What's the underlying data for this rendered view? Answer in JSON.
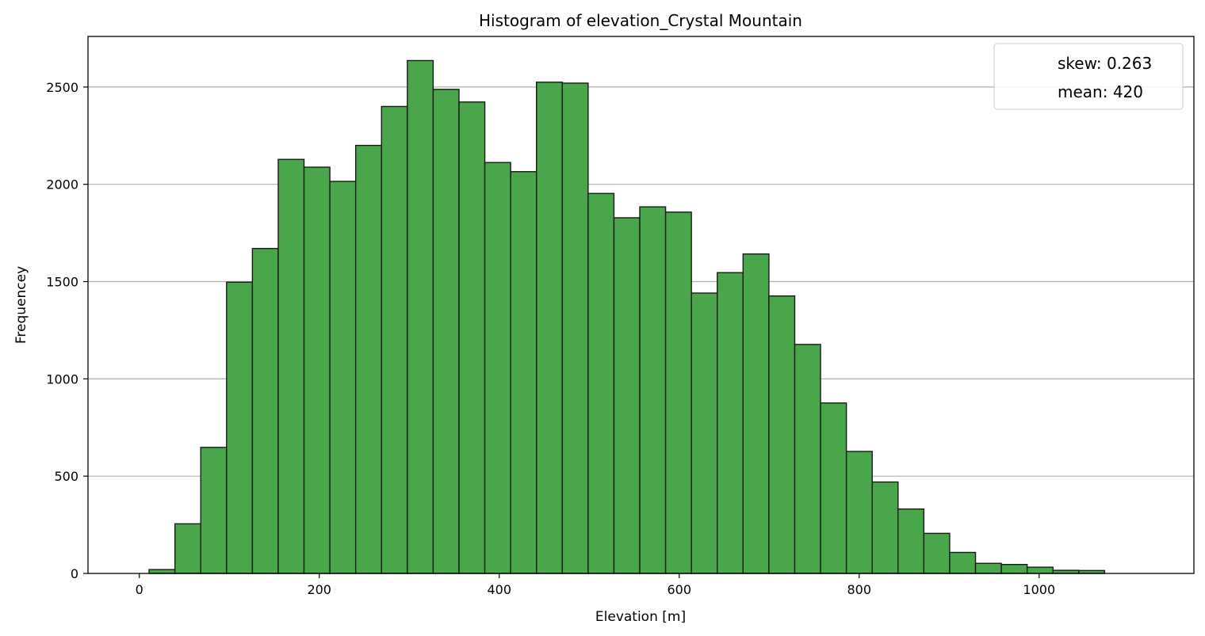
{
  "chart_data": {
    "type": "bar",
    "subtype": "histogram",
    "title": "Histogram of elevation_Crystal Mountain",
    "xlabel": "Elevation [m]",
    "ylabel": "Frequencey",
    "xlim": [
      -57,
      1172
    ],
    "ylim": [
      0,
      2760
    ],
    "xticks": [
      0,
      200,
      400,
      600,
      800,
      1000
    ],
    "yticks": [
      0,
      500,
      1000,
      1500,
      2000,
      2500
    ],
    "grid": "y",
    "bin_width": 28.7,
    "bin_edges_start": 10.9,
    "values": [
      20,
      255,
      648,
      1497,
      1670,
      2128,
      2088,
      2015,
      2200,
      2400,
      2636,
      2488,
      2423,
      2112,
      2065,
      2525,
      2520,
      1953,
      1828,
      1884,
      1857,
      1441,
      1546,
      1642,
      1426,
      1177,
      876,
      627,
      470,
      331,
      206,
      108,
      52,
      46,
      32,
      16,
      15
    ],
    "bar_color": "#4aa64a",
    "edge_color": "#1a1a1a",
    "legend": {
      "placement": "top-right",
      "entries": [
        "skew: 0.263",
        "mean: 420"
      ]
    }
  }
}
